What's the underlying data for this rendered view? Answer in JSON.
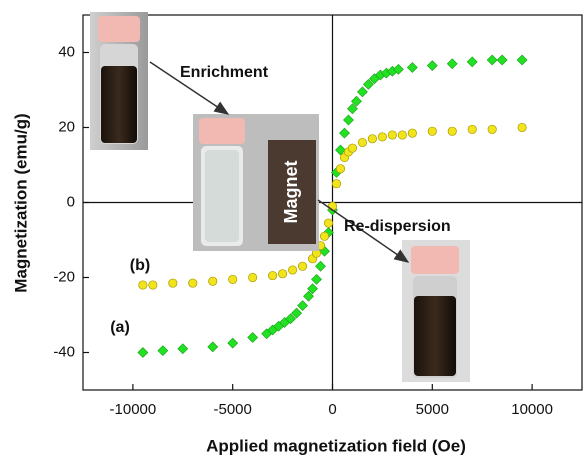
{
  "chart_data": {
    "type": "scatter",
    "x_label": "Applied magnetization field (Oe)",
    "y_label": "Magnetization (emu/g)",
    "xlim": [
      -12500,
      12500
    ],
    "ylim": [
      -50,
      50
    ],
    "xticks": [
      -10000,
      -5000,
      0,
      5000,
      10000
    ],
    "yticks": [
      -40,
      -20,
      0,
      20,
      40
    ],
    "zero_lines": true,
    "annotations": [
      "Enrichment",
      "Magnet",
      "Re-dispersion"
    ],
    "series": [
      {
        "name": "(a)",
        "color": "#22e022",
        "marker": "diamond",
        "x": [
          -9500,
          -8500,
          -7500,
          -6000,
          -5000,
          -4000,
          -3300,
          -3000,
          -2700,
          -2400,
          -2100,
          -1800,
          -1500,
          -1200,
          -1000,
          -800,
          -600,
          -400,
          -200,
          0,
          200,
          400,
          600,
          800,
          1000,
          1200,
          1500,
          1800,
          2100,
          2400,
          2700,
          3000,
          3300,
          4000,
          5000,
          6000,
          7000,
          8000,
          8500,
          9500
        ],
        "values": [
          -40,
          -39.5,
          -39,
          -38.5,
          -37.5,
          -36,
          -35,
          -34,
          -33,
          -32,
          -31,
          -29.5,
          -27.5,
          -25,
          -23,
          -20.5,
          -17,
          -13,
          -8,
          -2,
          8,
          14,
          18.5,
          22,
          25,
          27,
          29.5,
          31.5,
          33,
          34,
          34.5,
          35,
          35.5,
          36,
          36.5,
          37,
          37.5,
          38,
          38,
          38
        ]
      },
      {
        "name": "(b)",
        "color": "#f2e41c",
        "marker": "circle",
        "x": [
          -9500,
          -9000,
          -8000,
          -7000,
          -6000,
          -5000,
          -4000,
          -3000,
          -2500,
          -2000,
          -1500,
          -1000,
          -800,
          -600,
          -400,
          -200,
          0,
          200,
          400,
          600,
          800,
          1000,
          1500,
          2000,
          2500,
          3000,
          3500,
          4000,
          5000,
          6000,
          7000,
          8000,
          9500
        ],
        "values": [
          -22,
          -22,
          -21.5,
          -21.5,
          -21,
          -20.5,
          -20,
          -19.5,
          -19,
          -18,
          -17,
          -15,
          -13.5,
          -11.5,
          -9,
          -5.5,
          -1,
          5,
          9,
          12,
          13.5,
          14.5,
          16,
          17,
          17.5,
          18,
          18,
          18.5,
          19,
          19,
          19.5,
          19.5,
          20
        ]
      }
    ]
  }
}
